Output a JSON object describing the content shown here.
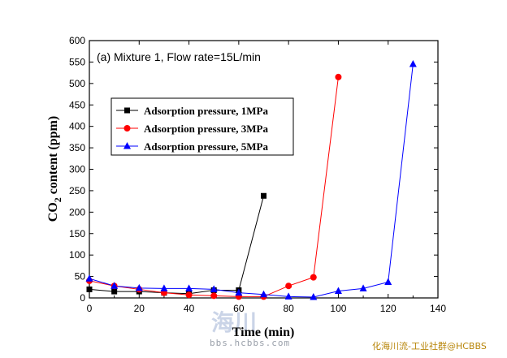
{
  "chart_data": {
    "type": "line",
    "annotation": "(a) Mixture 1, Flow rate=15L/min",
    "xlabel": "Time (min)",
    "ylabel_main": "CO",
    "ylabel_sub": "2",
    "ylabel_rest": " content (ppm)",
    "xlim": [
      0,
      140
    ],
    "ylim": [
      0,
      600
    ],
    "xticks": [
      0,
      20,
      40,
      60,
      80,
      100,
      120,
      140
    ],
    "yticks": [
      0,
      50,
      100,
      150,
      200,
      250,
      300,
      350,
      400,
      450,
      500,
      550,
      600
    ],
    "grid": false,
    "legend_position": "upper-left",
    "series": [
      {
        "name": "Adsorption pressure, 1MPa",
        "color": "#000000",
        "marker": "square",
        "x": [
          0,
          10,
          20,
          30,
          40,
          50,
          60,
          70
        ],
        "y": [
          20,
          15,
          15,
          12,
          10,
          18,
          18,
          238
        ]
      },
      {
        "name": "Adsorption pressure, 3MPa",
        "color": "#ff0000",
        "marker": "circle",
        "x": [
          0,
          10,
          20,
          30,
          40,
          50,
          60,
          70,
          80,
          90,
          100
        ],
        "y": [
          40,
          28,
          20,
          12,
          7,
          5,
          3,
          3,
          28,
          48,
          515
        ]
      },
      {
        "name": "Adsorption pressure, 5MPa",
        "color": "#0000ff",
        "marker": "triangle",
        "x": [
          0,
          10,
          20,
          30,
          40,
          50,
          60,
          70,
          80,
          90,
          100,
          110,
          120,
          130
        ],
        "y": [
          45,
          28,
          23,
          22,
          22,
          20,
          12,
          8,
          3,
          2,
          16,
          22,
          37,
          545
        ]
      }
    ]
  },
  "watermark": {
    "big": "海川",
    "url": "bbs.hcbbs.com",
    "credit": "化海川流-工业社群@HCBBS"
  }
}
